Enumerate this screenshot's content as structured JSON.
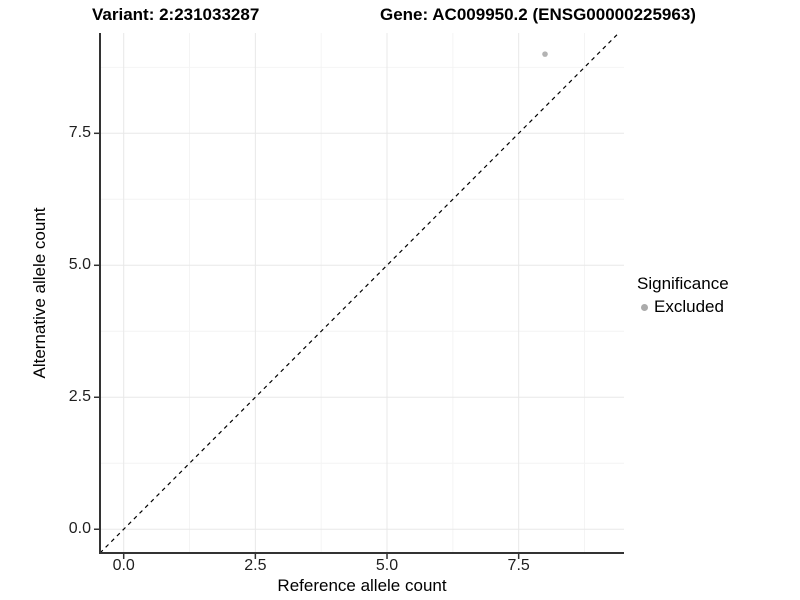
{
  "titles": {
    "variant": "Variant: 2:231033287",
    "gene": "Gene: AC009950.2 (ENSG00000225963)"
  },
  "chart_data": {
    "type": "scatter",
    "title_left": "Variant: 2:231033287",
    "title_right": "Gene: AC009950.2 (ENSG00000225963)",
    "xlabel": "Reference allele count",
    "ylabel": "Alternative allele count",
    "xlim": [
      -0.45,
      9.5
    ],
    "ylim": [
      -0.45,
      9.4
    ],
    "x_ticks": [
      0.0,
      2.5,
      5.0,
      7.5
    ],
    "x_tick_labels": [
      "0.0",
      "2.5",
      "5.0",
      "7.5"
    ],
    "y_ticks": [
      0.0,
      2.5,
      5.0,
      7.5
    ],
    "y_tick_labels": [
      "0.0",
      "2.5",
      "5.0",
      "7.5"
    ],
    "x_minor_ticks": [
      1.25,
      3.75,
      6.25,
      8.75
    ],
    "y_minor_ticks": [
      1.25,
      3.75,
      6.25,
      8.75
    ],
    "grid": true,
    "series": [
      {
        "name": "Excluded",
        "color": "#b3b3b3",
        "points": [
          {
            "x": 8,
            "y": 9
          }
        ]
      }
    ],
    "reference_line": {
      "label": "y = x",
      "slope": 1,
      "intercept": 0,
      "style": "dashed",
      "color": "#000000"
    },
    "legend": {
      "title": "Significance",
      "position": "right",
      "entries": [
        {
          "label": "Excluded",
          "color": "#ababab"
        }
      ]
    },
    "colors": {
      "grid_major": "#e8e8e8",
      "grid_minor": "#f4f4f4",
      "axis_line": "#333333",
      "tick_mark": "#333333",
      "point": "#b3b3b3"
    }
  }
}
